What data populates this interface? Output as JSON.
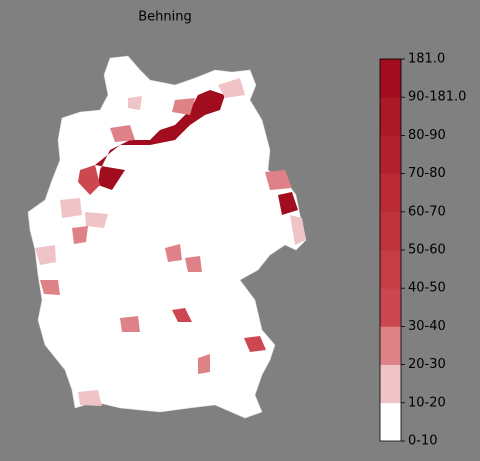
{
  "title": "Behning",
  "colorbar": {
    "labels": [
      "0-10",
      "10-20",
      "20-30",
      "30-40",
      "40-50",
      "50-60",
      "60-70",
      "70-80",
      "80-90",
      "90-181.0",
      "181.0"
    ],
    "colors": [
      "#ffffff",
      "#f0c4c6",
      "#de8287",
      "#cc474f",
      "#c63d46",
      "#c0333d",
      "#b92a35",
      "#b2212d",
      "#ab1826",
      "#a10d1f"
    ]
  }
}
